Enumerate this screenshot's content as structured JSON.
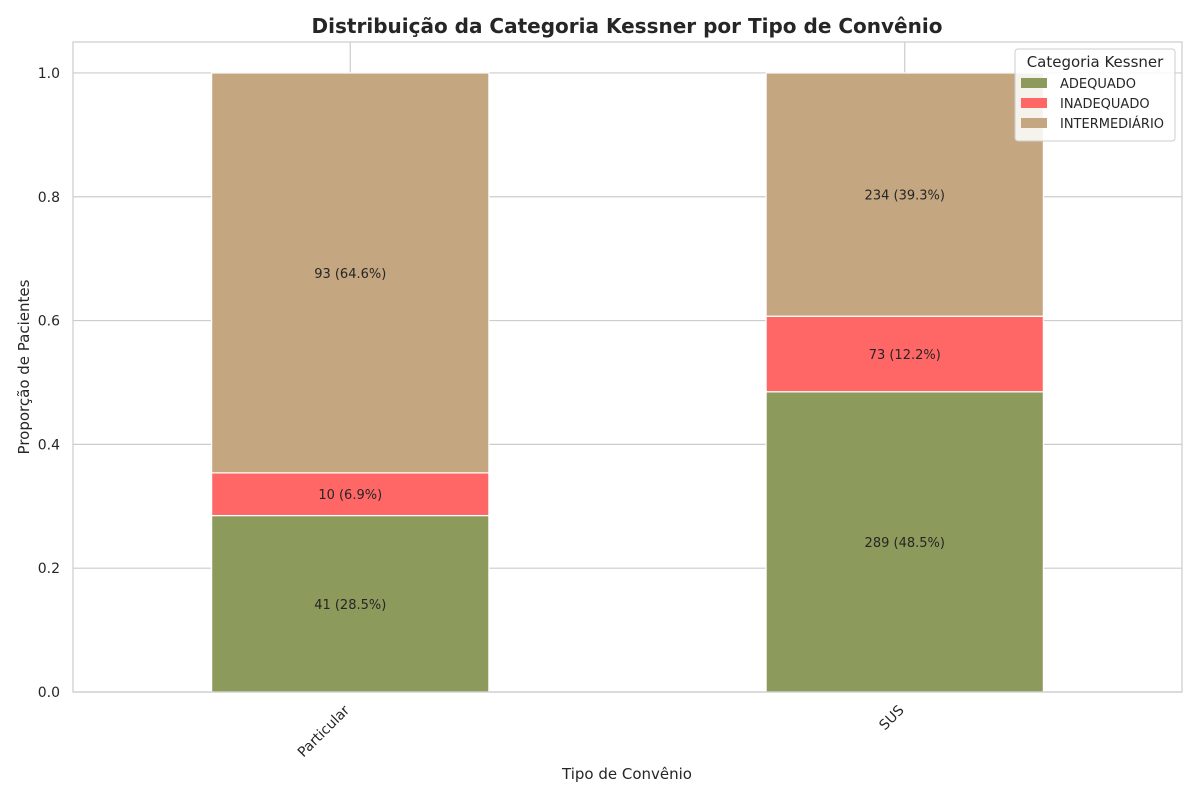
{
  "chart_data": {
    "type": "bar",
    "stacked": true,
    "normalized": true,
    "title": "Distribuição da Categoria Kessner por Tipo de Convênio",
    "xlabel": "Tipo de Convênio",
    "ylabel": "Proporção de Pacientes",
    "categories": [
      "Particular",
      "SUS"
    ],
    "ylim": [
      0,
      1.05
    ],
    "yticks": [
      0.0,
      0.2,
      0.4,
      0.6,
      0.8,
      1.0
    ],
    "ytick_labels": [
      "0.0",
      "0.2",
      "0.4",
      "0.6",
      "0.8",
      "1.0"
    ],
    "grid": true,
    "legend": {
      "title": "Categoria Kessner",
      "placement": "top-right"
    },
    "series": [
      {
        "name": "ADEQUADO",
        "color": "#8c9a5b",
        "values": [
          0.285,
          0.485
        ],
        "labels": [
          "41 (28.5%)",
          "289 (48.5%)"
        ]
      },
      {
        "name": "INADEQUADO",
        "color": "#ff6666",
        "values": [
          0.069,
          0.122
        ],
        "labels": [
          "10 (6.9%)",
          "73 (12.2%)"
        ]
      },
      {
        "name": "INTERMEDIÁRIO",
        "color": "#c4a780",
        "values": [
          0.646,
          0.393
        ],
        "labels": [
          "93 (64.6%)",
          "234 (39.3%)"
        ]
      }
    ]
  }
}
